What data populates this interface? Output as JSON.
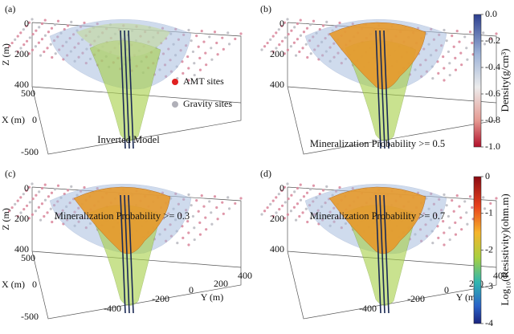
{
  "panels": [
    {
      "label": "(a)",
      "caption": "Inverted Model",
      "legend": [
        "AMT sites",
        "Gravity sites"
      ]
    },
    {
      "label": "(b)",
      "caption": "Mineralization Probability >= 0.5"
    },
    {
      "label": "(c)",
      "caption": "Mineralization Probability >= 0.3"
    },
    {
      "label": "(d)",
      "caption": "Mineralization Probability >= 0.7"
    }
  ],
  "axes": {
    "z_label": "Z (m)",
    "z_ticks": [
      0,
      200,
      400
    ],
    "x_label": "X (m)",
    "x_ticks": [
      500,
      0,
      -500
    ],
    "y_label": "Y (m)",
    "y_ticks": [
      -400,
      -200,
      0,
      200,
      400
    ]
  },
  "colorbars": [
    {
      "title": "Density(g/cm³)",
      "ticks": [
        {
          "value": 0,
          "label": "0.0"
        },
        -0.2,
        -0.4,
        -0.6,
        -0.8,
        {
          "value": -1,
          "label": "-1.0"
        }
      ]
    },
    {
      "title": "Log₁₀(Resistivity)(ohm.m)",
      "ticks": [
        0,
        -1,
        -2,
        -3,
        -4
      ]
    }
  ]
}
